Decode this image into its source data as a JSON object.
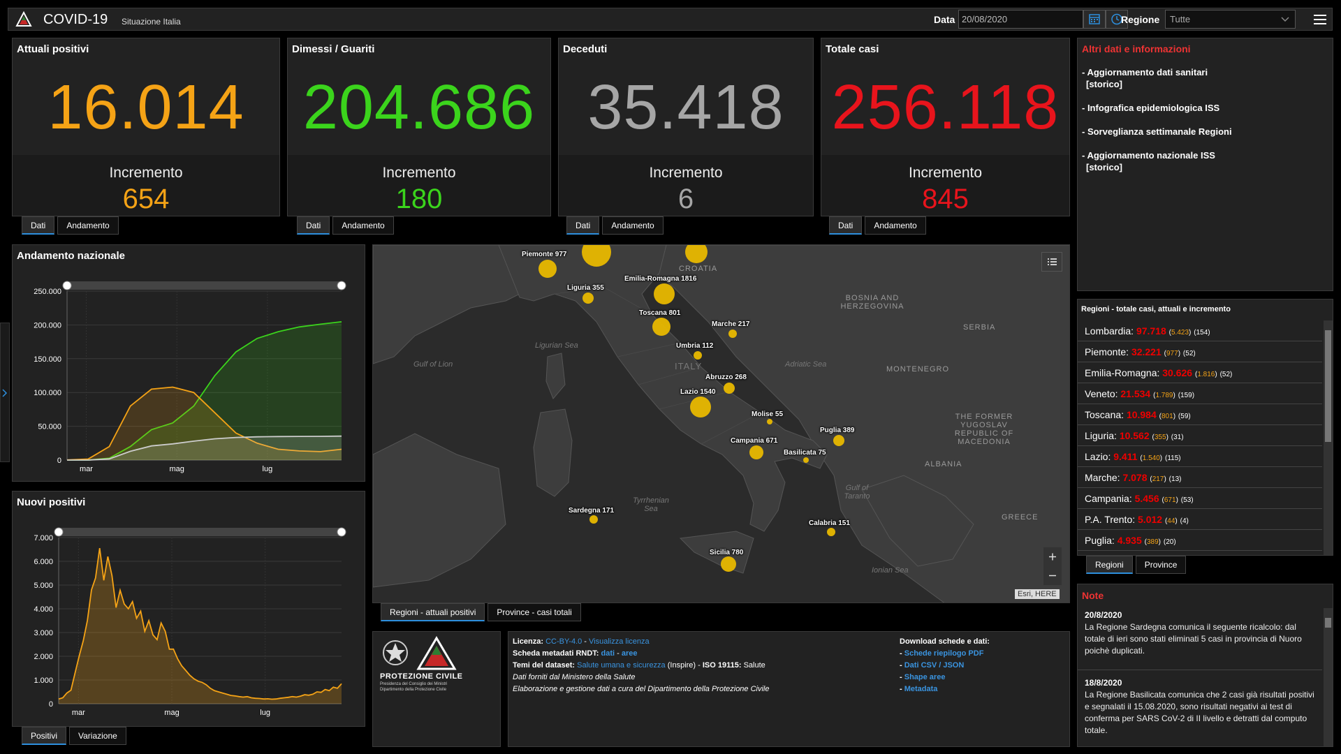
{
  "header": {
    "title": "COVID-19",
    "subtitle": "Situazione Italia",
    "date_label": "Data",
    "date_value": "20/08/2020",
    "region_label": "Regione",
    "region_value": "Tutte"
  },
  "stats": [
    {
      "label": "Attuali positivi",
      "value": "16.014",
      "incr_label": "Incremento",
      "incr": "654",
      "color": "#f5a316",
      "tabs": [
        "Dati",
        "Andamento"
      ]
    },
    {
      "label": "Dimessi / Guariti",
      "value": "204.686",
      "incr_label": "Incremento",
      "incr": "180",
      "color": "#3bd41c",
      "tabs": [
        "Dati",
        "Andamento"
      ]
    },
    {
      "label": "Deceduti",
      "value": "35.418",
      "incr_label": "Incremento",
      "incr": "6",
      "color": "#a6a6a6",
      "tabs": [
        "Dati",
        "Andamento"
      ]
    },
    {
      "label": "Totale casi",
      "value": "256.118",
      "incr_label": "Incremento",
      "incr": "845",
      "color": "#e8141c",
      "tabs": [
        "Dati",
        "Andamento"
      ]
    }
  ],
  "info": {
    "title": "Altri dati e informazioni",
    "links": [
      {
        "line1": "- Aggiornamento dati sanitari",
        "line2": "[storico]"
      },
      {
        "line1": "- Infografica epidemiologica ISS",
        "line2": ""
      },
      {
        "line1": "- Sorveglianza settimanale Regioni",
        "line2": ""
      },
      {
        "line1": "- Aggiornamento nazionale ISS",
        "line2": "[storico]"
      }
    ]
  },
  "trend_panel": {
    "title": "Andamento nazionale"
  },
  "new_panel": {
    "title": "Nuovi positivi",
    "tabs": [
      "Positivi",
      "Variazione"
    ]
  },
  "chart_data": [
    {
      "type": "line",
      "title": "Andamento nazionale",
      "x_ticks": [
        "mar",
        "mag",
        "lug"
      ],
      "y_ticks": [
        "250.000",
        "200.000",
        "150.000",
        "100.000",
        "50.000",
        "0"
      ],
      "ylim": [
        0,
        250000
      ],
      "x": [
        "24/02",
        "01/03",
        "15/03",
        "01/04",
        "15/04",
        "20/04",
        "01/05",
        "15/05",
        "01/06",
        "15/06",
        "01/07",
        "15/07",
        "01/08",
        "20/08"
      ],
      "series": [
        {
          "color": "#3bd41c",
          "values": [
            0,
            50,
            2800,
            20000,
            45000,
            55000,
            80000,
            125000,
            160000,
            180000,
            190000,
            197000,
            201000,
            204686
          ]
        },
        {
          "color": "#f5a316",
          "values": [
            220,
            1500,
            20000,
            80000,
            105000,
            108000,
            100000,
            70000,
            40000,
            25000,
            16000,
            13500,
            12500,
            16014
          ]
        },
        {
          "color": "#cccccc",
          "values": [
            7,
            34,
            1800,
            13000,
            21000,
            24000,
            28000,
            31500,
            33500,
            34400,
            34800,
            35000,
            35150,
            35418
          ]
        }
      ]
    },
    {
      "type": "area",
      "title": "Nuovi positivi",
      "x_ticks": [
        "mar",
        "mag",
        "lug"
      ],
      "y_ticks": [
        "7.000",
        "6.000",
        "5.000",
        "4.000",
        "3.000",
        "2.000",
        "1.000",
        "0"
      ],
      "ylim": [
        0,
        7000
      ],
      "series": [
        {
          "color": "#f5a316",
          "values": [
            200,
            250,
            450,
            570,
            1300,
            2000,
            2650,
            3500,
            4800,
            5300,
            6557,
            5200,
            6200,
            5400,
            4050,
            4780,
            4200,
            4000,
            4300,
            3600,
            3900,
            3050,
            3500,
            2900,
            2700,
            3400,
            3050,
            2300,
            2300,
            1900,
            1600,
            1400,
            1200,
            1050,
            950,
            900,
            800,
            650,
            550,
            500,
            450,
            400,
            350,
            330,
            300,
            280,
            300,
            250,
            230,
            220,
            200,
            210,
            190,
            200,
            230,
            250,
            270,
            300,
            280,
            320,
            380,
            360,
            400,
            500,
            480,
            600,
            550,
            700,
            650,
            845
          ]
        }
      ]
    }
  ],
  "map": {
    "tabs": [
      "Regioni - attuali positivi",
      "Province - casi totali"
    ],
    "country_labels": [
      "CROATIA",
      "BOSNIA AND HERZEGOVINA",
      "SERBIA",
      "MONTENEGRO",
      "THE FORMER YUGOSLAV REPUBLIC OF MACEDONIA",
      "ALBANIA",
      "GREECE",
      "ITALY"
    ],
    "sea_labels": [
      "Gulf of Lion",
      "Ligurian Sea",
      "Adriatic Sea",
      "Tyrrhenian Sea",
      "Gulf of Taranto",
      "Ionian Sea"
    ],
    "attribution": "Esri, HERE",
    "bubbles": [
      {
        "label": "Piemonte 977"
      },
      {
        "label": "Liguria 355"
      },
      {
        "label": "Emilia-Romagna 1816"
      },
      {
        "label": "Toscana 801"
      },
      {
        "label": "Marche 217"
      },
      {
        "label": "Umbria 112"
      },
      {
        "label": "Abruzzo 268"
      },
      {
        "label": "Lazio 1540"
      },
      {
        "label": "Molise 55"
      },
      {
        "label": "Puglia 389"
      },
      {
        "label": "Campania 671"
      },
      {
        "label": "Basilicata 75"
      },
      {
        "label": "Sardegna 171"
      },
      {
        "label": "Calabria 151"
      },
      {
        "label": "Sicilia 780"
      }
    ]
  },
  "regions": {
    "title": "Regioni - totale casi, attuali e incremento",
    "tabs": [
      "Regioni",
      "Province"
    ],
    "rows": [
      {
        "name": "Lombardia:",
        "total": "97.718",
        "current": "5.423",
        "incr": "(154)"
      },
      {
        "name": "Piemonte:",
        "total": "32.221",
        "current": "977",
        "incr": "(52)"
      },
      {
        "name": "Emilia-Romagna:",
        "total": "30.626",
        "current": "1.816",
        "incr": "(52)"
      },
      {
        "name": "Veneto:",
        "total": "21.534",
        "current": "1.789",
        "incr": "(159)"
      },
      {
        "name": "Toscana:",
        "total": "10.984",
        "current": "801",
        "incr": "(59)"
      },
      {
        "name": "Liguria:",
        "total": "10.562",
        "current": "355",
        "incr": "(31)"
      },
      {
        "name": "Lazio:",
        "total": "9.411",
        "current": "1.540",
        "incr": "(115)"
      },
      {
        "name": "Marche:",
        "total": "7.078",
        "current": "217",
        "incr": "(13)"
      },
      {
        "name": "Campania:",
        "total": "5.456",
        "current": "671",
        "incr": "(53)"
      },
      {
        "name": "P.A. Trento:",
        "total": "5.012",
        "current": "44",
        "incr": "(4)"
      },
      {
        "name": "Puglia:",
        "total": "4.935",
        "current": "389",
        "incr": "(20)"
      }
    ]
  },
  "footer": {
    "logo_text": "PROTEZIONE CIVILE",
    "logo_sub1": "Presidenza del Consiglio dei Ministri",
    "logo_sub2": "Dipartimento della Protezione Civile",
    "licenza_label": "Licenza:",
    "licenza_link": "CC-BY-4.0",
    "licenza_sep": " - ",
    "licenza_view": "Visualizza licenza",
    "scheda_label": "Scheda metadati RNDT:",
    "scheda_dati": "dati",
    "scheda_sep": " - ",
    "scheda_aree": "aree",
    "temi_label": "Temi del dataset:",
    "temi_link": "Salute umana e sicurezza",
    "temi_mid": " (Inspire) - ",
    "temi_iso": "ISO 19115:",
    "temi_end": " Salute",
    "fonte": "Dati forniti dal Ministero della Salute",
    "gestione": "Elaborazione e gestione dati a cura del Dipartimento della Protezione Civile",
    "download_title": "Download schede e dati:",
    "downloads": [
      "Schede riepilogo PDF",
      "Dati CSV / JSON",
      "Shape aree",
      "Metadata"
    ],
    "dl_prefix": "- "
  },
  "notes": {
    "title": "Note",
    "items": [
      {
        "date": "20/8/2020",
        "text": "La Regione Sardegna comunica il seguente ricalcolo: dal totale di ieri sono stati eliminati 5 casi in provincia di Nuoro poichè duplicati."
      },
      {
        "date": "18/8/2020",
        "text": "La Regione Basilicata comunica che 2 casi già risultati positivi e segnalati il 15.08.2020, sono risultati negativi ai test di conferma per SARS CoV-2 di II livello e detratti dal computo totale."
      }
    ]
  }
}
